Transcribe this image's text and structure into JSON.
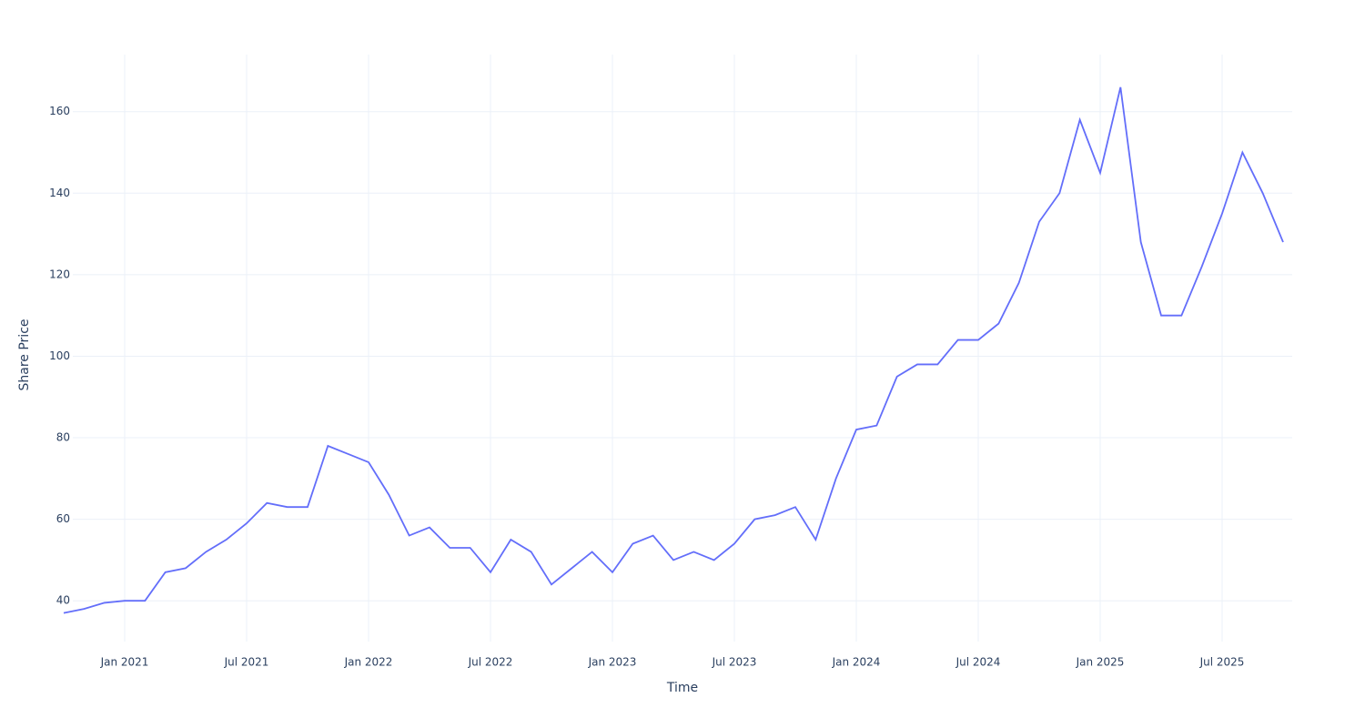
{
  "chart_data": {
    "type": "line",
    "x_title": "Time",
    "y_title": "Share Price",
    "x": [
      "2020-10",
      "2020-11",
      "2020-12",
      "2021-01",
      "2021-02",
      "2021-03",
      "2021-04",
      "2021-05",
      "2021-06",
      "2021-07",
      "2021-08",
      "2021-09",
      "2021-10",
      "2021-11",
      "2021-12",
      "2022-01",
      "2022-02",
      "2022-03",
      "2022-04",
      "2022-05",
      "2022-06",
      "2022-07",
      "2022-08",
      "2022-09",
      "2022-10",
      "2022-11",
      "2022-12",
      "2023-01",
      "2023-02",
      "2023-03",
      "2023-04",
      "2023-05",
      "2023-06",
      "2023-07",
      "2023-08",
      "2023-09",
      "2023-10",
      "2023-11",
      "2023-12",
      "2024-01",
      "2024-02",
      "2024-03",
      "2024-04",
      "2024-05",
      "2024-06",
      "2024-07",
      "2024-08",
      "2024-09",
      "2024-10",
      "2024-11",
      "2024-12",
      "2025-01",
      "2025-02",
      "2025-03",
      "2025-04",
      "2025-05",
      "2025-06",
      "2025-07",
      "2025-08",
      "2025-09",
      "2025-10"
    ],
    "series": [
      {
        "color": "#636efa",
        "values": [
          37,
          38,
          39.5,
          40,
          40,
          47,
          48,
          52,
          55,
          59,
          64,
          63,
          63,
          78,
          76,
          74,
          66,
          56,
          58,
          53,
          53,
          47,
          55,
          52,
          44,
          48,
          52,
          47,
          54,
          56,
          50,
          52,
          50,
          54,
          60,
          61,
          63,
          55,
          70,
          82,
          83,
          95,
          98,
          98,
          104,
          104,
          108,
          118,
          133,
          140,
          158,
          145,
          166,
          128,
          110,
          110,
          122,
          135,
          150,
          140,
          128
        ]
      }
    ],
    "xlim": [
      "2020-10",
      "2025-10"
    ],
    "xticks": [
      {
        "value": "2021-01",
        "label": "Jan 2021"
      },
      {
        "value": "2021-07",
        "label": "Jul 2021"
      },
      {
        "value": "2022-01",
        "label": "Jan 2022"
      },
      {
        "value": "2022-07",
        "label": "Jul 2022"
      },
      {
        "value": "2023-01",
        "label": "Jan 2023"
      },
      {
        "value": "2023-07",
        "label": "Jul 2023"
      },
      {
        "value": "2024-01",
        "label": "Jan 2024"
      },
      {
        "value": "2024-07",
        "label": "Jul 2024"
      },
      {
        "value": "2025-01",
        "label": "Jan 2025"
      },
      {
        "value": "2025-07",
        "label": "Jul 2025"
      }
    ],
    "ylim": [
      30,
      174
    ],
    "yticks": [
      40,
      60,
      80,
      100,
      120,
      140,
      160
    ],
    "grid": true
  }
}
